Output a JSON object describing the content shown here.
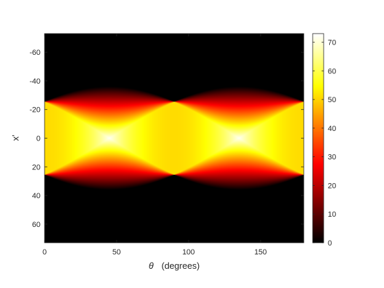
{
  "chart_data": {
    "type": "heatmap",
    "title": "",
    "xlabel_symbol": "θ",
    "xlabel_text": "(degrees)",
    "ylabel": "x'",
    "xlim": [
      0,
      180
    ],
    "ylim": [
      -73,
      73
    ],
    "y_reversed": true,
    "x_ticks": [
      0,
      50,
      100,
      150
    ],
    "x_tick_labels": [
      "0",
      "50",
      "100",
      "150"
    ],
    "y_ticks": [
      -60,
      -40,
      -20,
      0,
      20,
      40,
      60
    ],
    "y_tick_labels": [
      "-60",
      "-40",
      "-20",
      "0",
      "20",
      "40",
      "60"
    ],
    "colormap": "hot",
    "clim": [
      0,
      73
    ],
    "colorbar_ticks": [
      0,
      10,
      20,
      30,
      40,
      50,
      60,
      70
    ],
    "colorbar_tick_labels": [
      "0",
      "10",
      "20",
      "30",
      "40",
      "50",
      "60",
      "70"
    ],
    "description_values": {
      "square_half_width": 25.5,
      "peak_value": 73,
      "peak_locations_theta": [
        45,
        135
      ],
      "peak_location_x": 0
    }
  }
}
